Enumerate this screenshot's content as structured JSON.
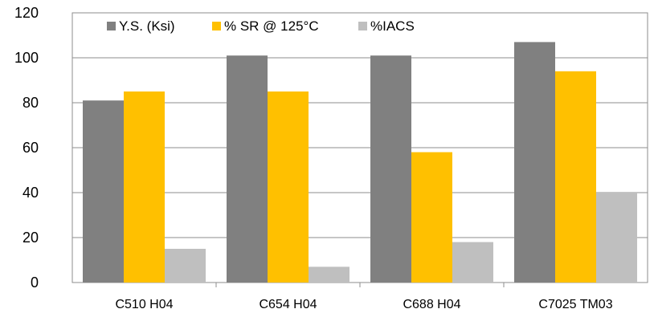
{
  "chart_data": {
    "type": "bar",
    "title": "",
    "xlabel": "",
    "ylabel": "",
    "categories": [
      "C510 H04",
      "C654 H04",
      "C688 H04",
      "C7025 TM03"
    ],
    "series": [
      {
        "name": "Y.S. (Ksi)",
        "values": [
          81,
          101,
          101,
          107
        ],
        "color": "#808080"
      },
      {
        "name": "% SR @ 125°C",
        "values": [
          85,
          85,
          58,
          94
        ],
        "color": "#FFC000"
      },
      {
        "name": "%IACS",
        "values": [
          15,
          7,
          18,
          40
        ],
        "color": "#BFBFBF"
      }
    ],
    "ylim": [
      0,
      120
    ],
    "yticks": [
      "0",
      "20",
      "40",
      "60",
      "80",
      "100",
      "120"
    ],
    "grid": true,
    "legend_position": "top-left, inside plot"
  }
}
